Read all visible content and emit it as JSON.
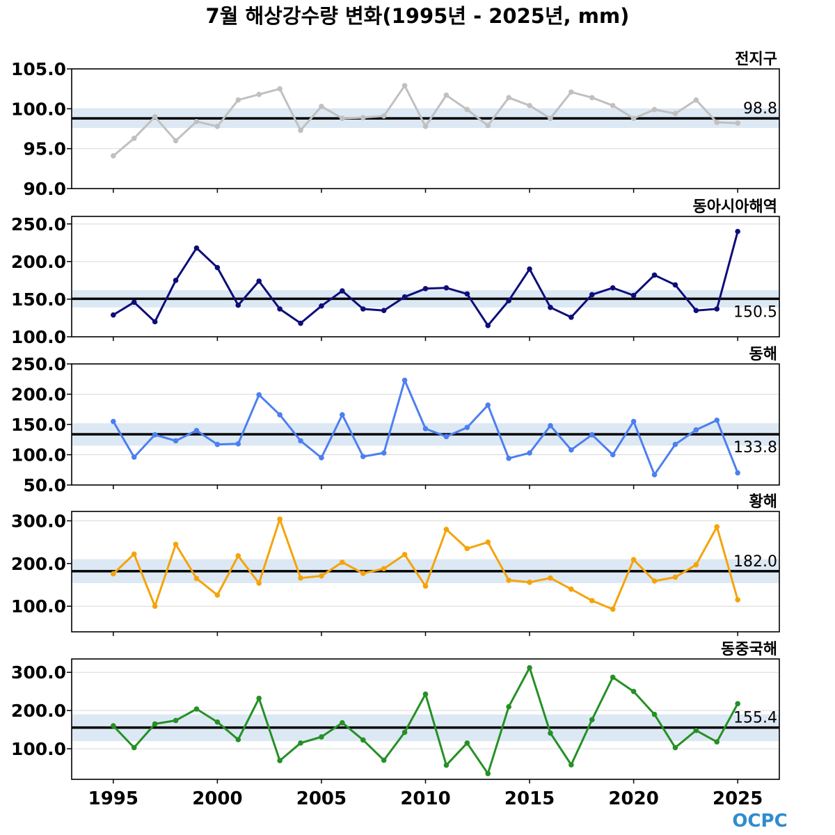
{
  "title": "7월 해상강수량 변화(1995년 - 2025년, mm)",
  "logo": {
    "text": "OCPC",
    "color": "#2f8ccf"
  },
  "colors": {
    "band": "#dce8f3",
    "mean_line": "#000000",
    "grid": "#d9d9d9"
  },
  "chart_data": [
    {
      "type": "line",
      "label": "전지구",
      "color": "#c0c0c0",
      "x": [
        1995,
        1996,
        1997,
        1998,
        1999,
        2000,
        2001,
        2002,
        2003,
        2004,
        2005,
        2006,
        2007,
        2008,
        2009,
        2010,
        2011,
        2012,
        2013,
        2014,
        2015,
        2016,
        2017,
        2018,
        2019,
        2020,
        2021,
        2022,
        2023,
        2024,
        2025
      ],
      "values": [
        94.1,
        96.3,
        99.0,
        96.0,
        98.4,
        97.8,
        101.1,
        101.8,
        102.5,
        97.3,
        100.3,
        98.8,
        98.9,
        99.1,
        102.9,
        97.8,
        101.7,
        99.9,
        97.9,
        101.4,
        100.4,
        98.8,
        102.1,
        101.4,
        100.4,
        98.8,
        99.9,
        99.4,
        101.1,
        98.3,
        98.2
      ],
      "mean": 98.8,
      "mean_label": "98.8",
      "band": [
        97.6,
        100.0
      ],
      "ylim": [
        90,
        105
      ],
      "yticks": [
        "105.0",
        "100.0",
        "95.0",
        "90.0"
      ],
      "label_position": "above-line"
    },
    {
      "type": "line",
      "label": "동아시아해역",
      "color": "#0d0d7a",
      "x": [
        1995,
        1996,
        1997,
        1998,
        1999,
        2000,
        2001,
        2002,
        2003,
        2004,
        2005,
        2006,
        2007,
        2008,
        2009,
        2010,
        2011,
        2012,
        2013,
        2014,
        2015,
        2016,
        2017,
        2018,
        2019,
        2020,
        2021,
        2022,
        2023,
        2024,
        2025
      ],
      "values": [
        129,
        146,
        120,
        175,
        218,
        192,
        142,
        174,
        137,
        118,
        141,
        161,
        137,
        135,
        153,
        164,
        165,
        157,
        115,
        148,
        190,
        139,
        126,
        156,
        165,
        155,
        182,
        169,
        135,
        137,
        240
      ],
      "mean": 150.5,
      "mean_label": "150.5",
      "band": [
        139,
        162
      ],
      "ylim": [
        100,
        260
      ],
      "yticks": [
        "250.0",
        "200.0",
        "150.0",
        "100.0"
      ],
      "label_position": "below-line"
    },
    {
      "type": "line",
      "label": "동해",
      "color": "#4d7ff0",
      "x": [
        1995,
        1996,
        1997,
        1998,
        1999,
        2000,
        2001,
        2002,
        2003,
        2004,
        2005,
        2006,
        2007,
        2008,
        2009,
        2010,
        2011,
        2012,
        2013,
        2014,
        2015,
        2016,
        2017,
        2018,
        2019,
        2020,
        2021,
        2022,
        2023,
        2024,
        2025
      ],
      "values": [
        155,
        96,
        133,
        123,
        140,
        117,
        118,
        199,
        166,
        123,
        95,
        166,
        97,
        103,
        223,
        143,
        130,
        145,
        182,
        94,
        103,
        148,
        108,
        133,
        100,
        155,
        67,
        117,
        141,
        157,
        70
      ],
      "mean": 133.8,
      "mean_label": "133.8",
      "band": [
        115,
        152
      ],
      "ylim": [
        50,
        250
      ],
      "yticks": [
        "250.0",
        "200.0",
        "150.0",
        "100.0",
        "50.0"
      ],
      "label_position": "below-line"
    },
    {
      "type": "line",
      "label": "황해",
      "color": "#f5a30a",
      "x": [
        1995,
        1996,
        1997,
        1998,
        1999,
        2000,
        2001,
        2002,
        2003,
        2004,
        2005,
        2006,
        2007,
        2008,
        2009,
        2010,
        2011,
        2012,
        2013,
        2014,
        2015,
        2016,
        2017,
        2018,
        2019,
        2020,
        2021,
        2022,
        2023,
        2024,
        2025
      ],
      "values": [
        176,
        222,
        100,
        245,
        165,
        126,
        218,
        154,
        304,
        166,
        171,
        203,
        177,
        188,
        221,
        147,
        280,
        235,
        250,
        161,
        156,
        166,
        140,
        113,
        93,
        209,
        159,
        168,
        197,
        286,
        115
      ],
      "mean": 182.0,
      "mean_label": "182.0",
      "band": [
        154,
        210
      ],
      "ylim": [
        40,
        322
      ],
      "yticks": [
        "300.0",
        "200.0",
        "100.0"
      ],
      "label_position": "above-line"
    },
    {
      "type": "line",
      "label": "동중국해",
      "color": "#259025",
      "x": [
        1995,
        1996,
        1997,
        1998,
        1999,
        2000,
        2001,
        2002,
        2003,
        2004,
        2005,
        2006,
        2007,
        2008,
        2009,
        2010,
        2011,
        2012,
        2013,
        2014,
        2015,
        2016,
        2017,
        2018,
        2019,
        2020,
        2021,
        2022,
        2023,
        2024,
        2025
      ],
      "values": [
        160,
        103,
        165,
        174,
        204,
        170,
        124,
        232,
        69,
        115,
        131,
        168,
        123,
        70,
        143,
        243,
        57,
        115,
        35,
        210,
        312,
        141,
        58,
        176,
        287,
        250,
        190,
        103,
        148,
        118,
        218
      ],
      "mean": 155.4,
      "mean_label": "155.4",
      "band": [
        120,
        190
      ],
      "ylim": [
        20,
        335
      ],
      "yticks": [
        "300.0",
        "200.0",
        "100.0"
      ],
      "label_position": "above-line"
    }
  ],
  "x_axis": {
    "ticks": [
      1995,
      2000,
      2005,
      2010,
      2015,
      2020,
      2025
    ],
    "tick_labels": [
      "1995",
      "2000",
      "2005",
      "2010",
      "2015",
      "2020",
      "2025"
    ]
  }
}
